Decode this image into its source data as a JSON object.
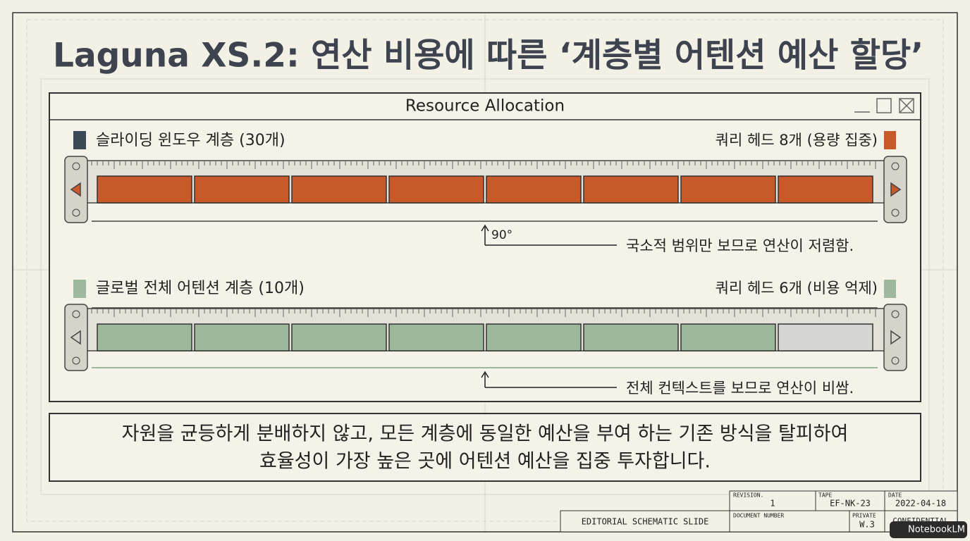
{
  "header": {
    "title": "Laguna XS.2: 연산 비용에 따른 ‘계층별 어텐션 예산 할당’"
  },
  "window": {
    "title": "Resource Allocation"
  },
  "layers": [
    {
      "label": "슬라이딩 윈도우 계층 (30개)",
      "heads": "쿼리 헤드 8개 (용량 집중)",
      "angle": "90°",
      "note": "국소적 범위만 보므로 연산이 저렴함."
    },
    {
      "label": "글로벌 전체 어텐션 계층 (10개)",
      "heads": "쿼리 헤드 6개 (비용 억제)",
      "note": "전체 컨텍스트를 보므로 연산이 비쌈."
    }
  ],
  "summary": [
    "자원을 균등하게 분배하지 않고, 모든 계층에 동일한 예산을 부여 하는 기존 방식을 탈피하여",
    "효율성이 가장 높은 곳에 어텐션 예산을 집중 투자합니다."
  ],
  "title_block": {
    "revision_label": "REVISION.",
    "revision": "1",
    "tape_label": "TAPE",
    "tape": "EF-NK-23",
    "date_label": "DATE",
    "date": "2022-04-18",
    "slide": "EDITORIAL SCHEMATIC SLIDE",
    "document_number_label": "DOCUMENT NUMBER",
    "private_label": "PRIVATE",
    "private": "W.3",
    "confidential": "CONFIDENTIAL"
  },
  "watermark": "NotebookLM"
}
